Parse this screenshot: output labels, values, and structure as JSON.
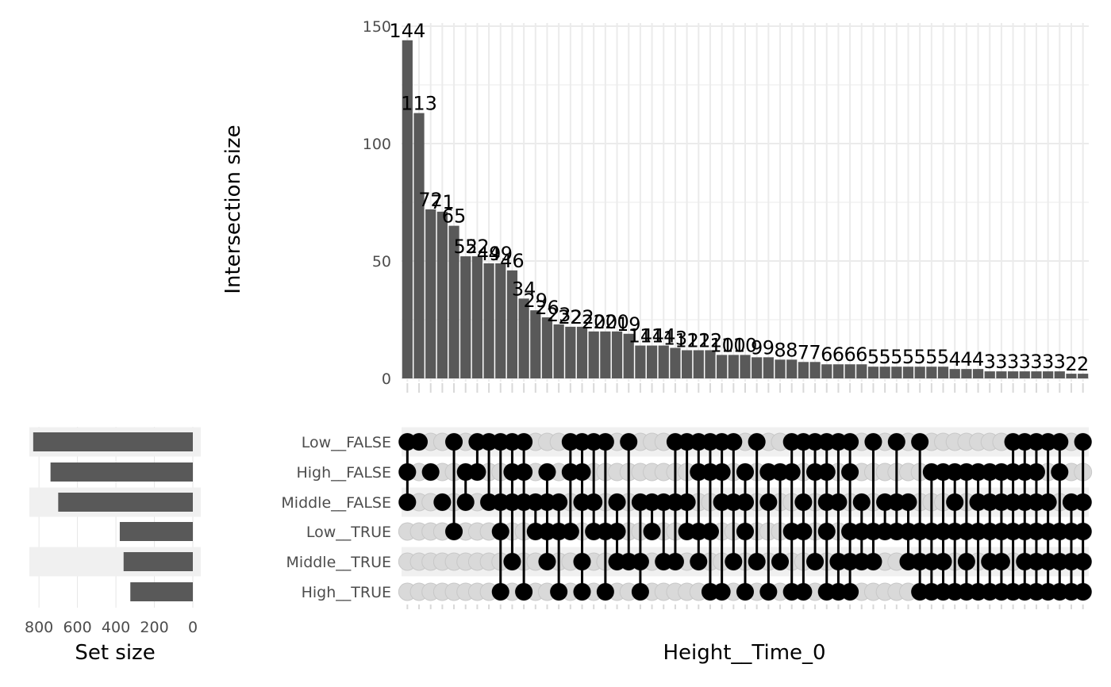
{
  "chart_data": {
    "type": "upset",
    "xlabel": "Height__Time_0",
    "ylabel": "Intersection size",
    "set_size_label": "Set size",
    "ylim": [
      0,
      150
    ],
    "y_ticks": [
      0,
      50,
      100,
      150
    ],
    "set_size_ticks": [
      800,
      600,
      400,
      200,
      0
    ],
    "set_size_max": 850,
    "bar_color": "#595959",
    "sets": [
      {
        "name": "Low__FALSE",
        "size": 830
      },
      {
        "name": "High__FALSE",
        "size": 740
      },
      {
        "name": "Middle__FALSE",
        "size": 700
      },
      {
        "name": "Low__TRUE",
        "size": 380
      },
      {
        "name": "Middle__TRUE",
        "size": 360
      },
      {
        "name": "High__TRUE",
        "size": 325
      }
    ],
    "intersections": [
      {
        "value": 144,
        "label": "144",
        "members": [
          "Low__FALSE",
          "High__FALSE",
          "Middle__FALSE"
        ]
      },
      {
        "value": 113,
        "label": "113",
        "members": [
          "Low__FALSE"
        ]
      },
      {
        "value": 72,
        "label": "72",
        "members": [
          "High__FALSE"
        ]
      },
      {
        "value": 71,
        "label": "71",
        "members": [
          "Middle__FALSE"
        ]
      },
      {
        "value": 65,
        "label": "65",
        "members": [
          "Low__FALSE",
          "Low__TRUE"
        ]
      },
      {
        "value": 52,
        "label": "52",
        "members": [
          "High__FALSE",
          "Middle__FALSE"
        ]
      },
      {
        "value": 52,
        "label": "52",
        "members": [
          "Low__FALSE",
          "High__FALSE"
        ]
      },
      {
        "value": 49,
        "label": "49",
        "members": [
          "Low__FALSE",
          "Middle__FALSE"
        ]
      },
      {
        "value": 49,
        "label": "49",
        "members": [
          "Low__FALSE",
          "Middle__FALSE",
          "Low__TRUE",
          "High__TRUE"
        ]
      },
      {
        "value": 46,
        "label": "46",
        "members": [
          "Low__FALSE",
          "High__FALSE",
          "Middle__FALSE",
          "Middle__TRUE"
        ]
      },
      {
        "value": 34,
        "label": "34",
        "members": [
          "Low__FALSE",
          "High__FALSE",
          "Middle__FALSE",
          "High__TRUE"
        ]
      },
      {
        "value": 29,
        "label": "29",
        "members": [
          "Middle__FALSE",
          "Low__TRUE"
        ]
      },
      {
        "value": 26,
        "label": "26",
        "members": [
          "High__FALSE",
          "Middle__FALSE",
          "Low__TRUE",
          "Middle__TRUE"
        ]
      },
      {
        "value": 23,
        "label": "23",
        "members": [
          "Middle__FALSE",
          "Low__TRUE",
          "High__TRUE"
        ]
      },
      {
        "value": 22,
        "label": "22",
        "members": [
          "Low__FALSE",
          "High__FALSE",
          "Low__TRUE"
        ]
      },
      {
        "value": 22,
        "label": "22",
        "members": [
          "Low__FALSE",
          "High__FALSE",
          "Middle__FALSE",
          "Middle__TRUE",
          "High__TRUE"
        ]
      },
      {
        "value": 20,
        "label": "20",
        "members": [
          "Low__FALSE",
          "Middle__FALSE",
          "Low__TRUE"
        ]
      },
      {
        "value": 20,
        "label": "20",
        "members": [
          "Low__FALSE",
          "Low__TRUE",
          "High__TRUE"
        ]
      },
      {
        "value": 20,
        "label": "20",
        "members": [
          "Middle__FALSE",
          "Low__TRUE",
          "Middle__TRUE"
        ]
      },
      {
        "value": 19,
        "label": "19",
        "members": [
          "Low__FALSE",
          "Middle__TRUE"
        ]
      },
      {
        "value": 14,
        "label": "14",
        "members": [
          "Middle__FALSE",
          "Middle__TRUE",
          "High__TRUE"
        ]
      },
      {
        "value": 14,
        "label": "14",
        "members": [
          "Middle__FALSE",
          "Low__TRUE"
        ]
      },
      {
        "value": 14,
        "label": "14",
        "members": [
          "Middle__FALSE",
          "Middle__TRUE"
        ]
      },
      {
        "value": 13,
        "label": "13",
        "members": [
          "Low__FALSE",
          "Middle__FALSE",
          "Middle__TRUE"
        ]
      },
      {
        "value": 12,
        "label": "12",
        "members": [
          "Low__FALSE",
          "Middle__FALSE",
          "Low__TRUE"
        ]
      },
      {
        "value": 12,
        "label": "12",
        "members": [
          "Low__FALSE",
          "High__FALSE",
          "Low__TRUE",
          "Middle__TRUE"
        ]
      },
      {
        "value": 12,
        "label": "12",
        "members": [
          "Low__FALSE",
          "High__FALSE",
          "Low__TRUE",
          "High__TRUE"
        ]
      },
      {
        "value": 10,
        "label": "10",
        "members": [
          "Low__FALSE",
          "High__FALSE",
          "Middle__FALSE",
          "High__TRUE"
        ]
      },
      {
        "value": 10,
        "label": "10",
        "members": [
          "Low__FALSE",
          "Middle__FALSE",
          "Middle__TRUE"
        ]
      },
      {
        "value": 10,
        "label": "10",
        "members": [
          "High__FALSE",
          "Middle__FALSE",
          "Low__TRUE",
          "High__TRUE"
        ]
      },
      {
        "value": 9,
        "label": "9",
        "members": [
          "Low__FALSE",
          "Middle__TRUE"
        ]
      },
      {
        "value": 9,
        "label": "9",
        "members": [
          "High__FALSE",
          "Middle__FALSE",
          "High__TRUE"
        ]
      },
      {
        "value": 8,
        "label": "8",
        "members": [
          "High__FALSE",
          "Middle__TRUE"
        ]
      },
      {
        "value": 8,
        "label": "8",
        "members": [
          "Low__FALSE",
          "High__FALSE",
          "Low__TRUE",
          "High__TRUE"
        ]
      },
      {
        "value": 7,
        "label": "7",
        "members": [
          "Low__FALSE",
          "Middle__FALSE",
          "Low__TRUE",
          "High__TRUE"
        ]
      },
      {
        "value": 7,
        "label": "7",
        "members": [
          "Low__FALSE",
          "High__FALSE",
          "Middle__TRUE"
        ]
      },
      {
        "value": 6,
        "label": "6",
        "members": [
          "Low__FALSE",
          "High__FALSE",
          "Middle__FALSE",
          "Low__TRUE",
          "High__TRUE"
        ]
      },
      {
        "value": 6,
        "label": "6",
        "members": [
          "Low__FALSE",
          "Middle__FALSE",
          "Middle__TRUE",
          "High__TRUE"
        ]
      },
      {
        "value": 6,
        "label": "6",
        "members": [
          "Low__FALSE",
          "High__FALSE",
          "Low__TRUE",
          "Middle__TRUE",
          "High__TRUE"
        ]
      },
      {
        "value": 6,
        "label": "6",
        "members": [
          "Middle__FALSE",
          "Low__TRUE",
          "Middle__TRUE"
        ]
      },
      {
        "value": 5,
        "label": "5",
        "members": [
          "Low__FALSE",
          "Low__TRUE",
          "Middle__TRUE"
        ]
      },
      {
        "value": 5,
        "label": "5",
        "members": [
          "Middle__FALSE",
          "Low__TRUE"
        ]
      },
      {
        "value": 5,
        "label": "5",
        "members": [
          "Low__FALSE",
          "Middle__FALSE",
          "Low__TRUE"
        ]
      },
      {
        "value": 5,
        "label": "5",
        "members": [
          "Middle__FALSE",
          "Low__TRUE",
          "Middle__TRUE"
        ]
      },
      {
        "value": 5,
        "label": "5",
        "members": [
          "Low__FALSE",
          "Low__TRUE",
          "Middle__TRUE",
          "High__TRUE"
        ]
      },
      {
        "value": 5,
        "label": "5",
        "members": [
          "High__FALSE",
          "Low__TRUE",
          "Middle__TRUE",
          "High__TRUE"
        ]
      },
      {
        "value": 5,
        "label": "5",
        "members": [
          "High__FALSE",
          "Low__TRUE",
          "Middle__TRUE",
          "High__TRUE"
        ]
      },
      {
        "value": 4,
        "label": "4",
        "members": [
          "High__FALSE",
          "Middle__FALSE",
          "Low__TRUE",
          "High__TRUE"
        ]
      },
      {
        "value": 4,
        "label": "4",
        "members": [
          "High__FALSE",
          "Low__TRUE",
          "Middle__TRUE",
          "High__TRUE"
        ]
      },
      {
        "value": 4,
        "label": "4",
        "members": [
          "High__FALSE",
          "Middle__FALSE",
          "Low__TRUE",
          "High__TRUE"
        ]
      },
      {
        "value": 3,
        "label": "3",
        "members": [
          "High__FALSE",
          "Middle__FALSE",
          "Low__TRUE",
          "Middle__TRUE",
          "High__TRUE"
        ]
      },
      {
        "value": 3,
        "label": "3",
        "members": [
          "High__FALSE",
          "Middle__FALSE",
          "Low__TRUE",
          "Middle__TRUE",
          "High__TRUE"
        ]
      },
      {
        "value": 3,
        "label": "3",
        "members": [
          "Low__FALSE",
          "High__FALSE",
          "Middle__FALSE",
          "Low__TRUE",
          "High__TRUE"
        ]
      },
      {
        "value": 3,
        "label": "3",
        "members": [
          "Low__FALSE",
          "High__FALSE",
          "Middle__FALSE",
          "Low__TRUE",
          "Middle__TRUE",
          "High__TRUE"
        ]
      },
      {
        "value": 3,
        "label": "3",
        "members": [
          "Low__FALSE",
          "High__FALSE",
          "Middle__FALSE",
          "Low__TRUE",
          "Middle__TRUE",
          "High__TRUE"
        ]
      },
      {
        "value": 3,
        "label": "3",
        "members": [
          "Low__FALSE",
          "Middle__FALSE",
          "Low__TRUE",
          "Middle__TRUE",
          "High__TRUE"
        ]
      },
      {
        "value": 3,
        "label": "3",
        "members": [
          "Low__FALSE",
          "High__FALSE",
          "Low__TRUE",
          "Middle__TRUE",
          "High__TRUE"
        ]
      },
      {
        "value": 2,
        "label": "2",
        "members": [
          "Middle__FALSE",
          "Low__TRUE",
          "Middle__TRUE",
          "High__TRUE"
        ]
      },
      {
        "value": 2,
        "label": "2",
        "members": [
          "Low__FALSE",
          "Middle__FALSE",
          "Low__TRUE",
          "Middle__TRUE",
          "High__TRUE"
        ]
      }
    ]
  }
}
